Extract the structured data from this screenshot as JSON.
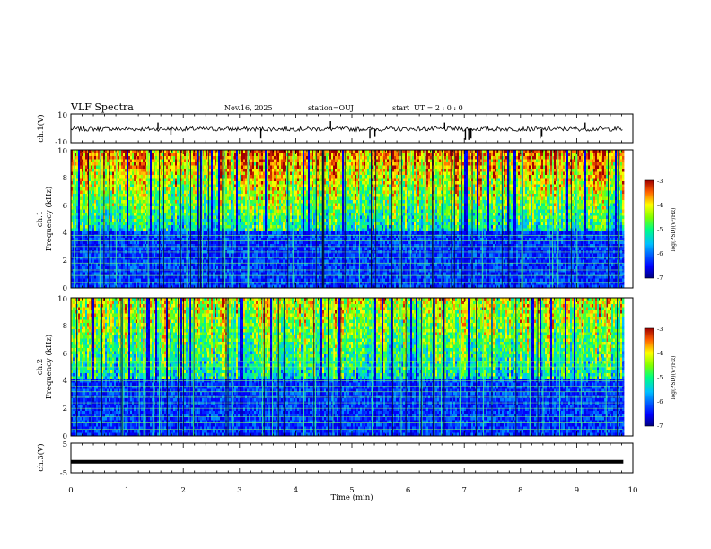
{
  "chart_data": {
    "type": "heatmap",
    "title": "VLF Spectra",
    "header": {
      "date": "Nov.16, 2025",
      "station": "station=OUJ",
      "start_label": "start",
      "start_ut": "UT =  2 : 0  : 0"
    },
    "xaxis": {
      "label": "Time  (min)",
      "range": [
        0,
        10
      ],
      "ticks": [
        "0",
        "1",
        "2",
        "3",
        "4",
        "5",
        "6",
        "7",
        "8",
        "9",
        "10"
      ]
    },
    "data_end_min": 9.83,
    "panels": [
      {
        "id": "ch1-waveform",
        "type": "line",
        "ylabel": "ch.1(V)",
        "yrange": [
          -10,
          10
        ],
        "yticks": [
          "10",
          "-10"
        ],
        "baseline": -0.5,
        "spikes": [
          {
            "t": 1.55,
            "v": 4
          },
          {
            "t": 1.78,
            "v": -5
          },
          {
            "t": 3.38,
            "v": -7
          },
          {
            "t": 4.62,
            "v": 5
          },
          {
            "t": 5.32,
            "v": -7
          },
          {
            "t": 5.41,
            "v": -6
          },
          {
            "t": 6.65,
            "v": 4
          },
          {
            "t": 7.02,
            "v": -8
          },
          {
            "t": 7.08,
            "v": -8
          },
          {
            "t": 7.12,
            "v": -7
          },
          {
            "t": 8.35,
            "v": -7
          },
          {
            "t": 8.38,
            "v": -6
          },
          {
            "t": 9.15,
            "v": 4
          }
        ]
      },
      {
        "id": "ch1-spectrogram",
        "type": "heatmap",
        "ylabel_top": "ch.1",
        "ylabel": "Frequency  (kHz)",
        "yrange": [
          0,
          10
        ],
        "yticks": [
          "0",
          "2",
          "4",
          "6",
          "8",
          "10"
        ],
        "colorbar": {
          "label": "log(PSD)(V²/Hz)",
          "range": [
            -7,
            -3
          ],
          "ticks": [
            "-3",
            "-4",
            "-5",
            "-6",
            "-7"
          ]
        },
        "lines_khz": [
          0.4,
          0.9,
          1.3,
          1.8,
          2.2,
          2.6,
          3.0,
          3.4,
          3.8
        ],
        "hot_band_khz": [
          6,
          10
        ]
      },
      {
        "id": "ch2-spectrogram",
        "type": "heatmap",
        "ylabel_top": "ch.2",
        "ylabel": "Frequency  (kHz)",
        "yrange": [
          0,
          10
        ],
        "yticks": [
          "0",
          "2",
          "4",
          "6",
          "8",
          "10"
        ],
        "colorbar": {
          "label": "log(PSD)(V²/Hz)",
          "range": [
            -7,
            -3
          ],
          "ticks": [
            "-3",
            "-4",
            "-5",
            "-6",
            "-7"
          ]
        },
        "lines_khz": [
          0.5,
          1.0,
          1.4,
          2.0,
          2.4,
          2.8,
          3.2,
          3.6,
          4.0,
          5.0,
          5.4
        ],
        "hot_band_khz": [
          5,
          10
        ]
      },
      {
        "id": "ch3-waveform",
        "type": "line",
        "ylabel": "ch.3(V)",
        "yrange": [
          -5,
          5
        ],
        "yticks": [
          "5",
          "-5"
        ],
        "baseline": -1.3
      }
    ]
  }
}
